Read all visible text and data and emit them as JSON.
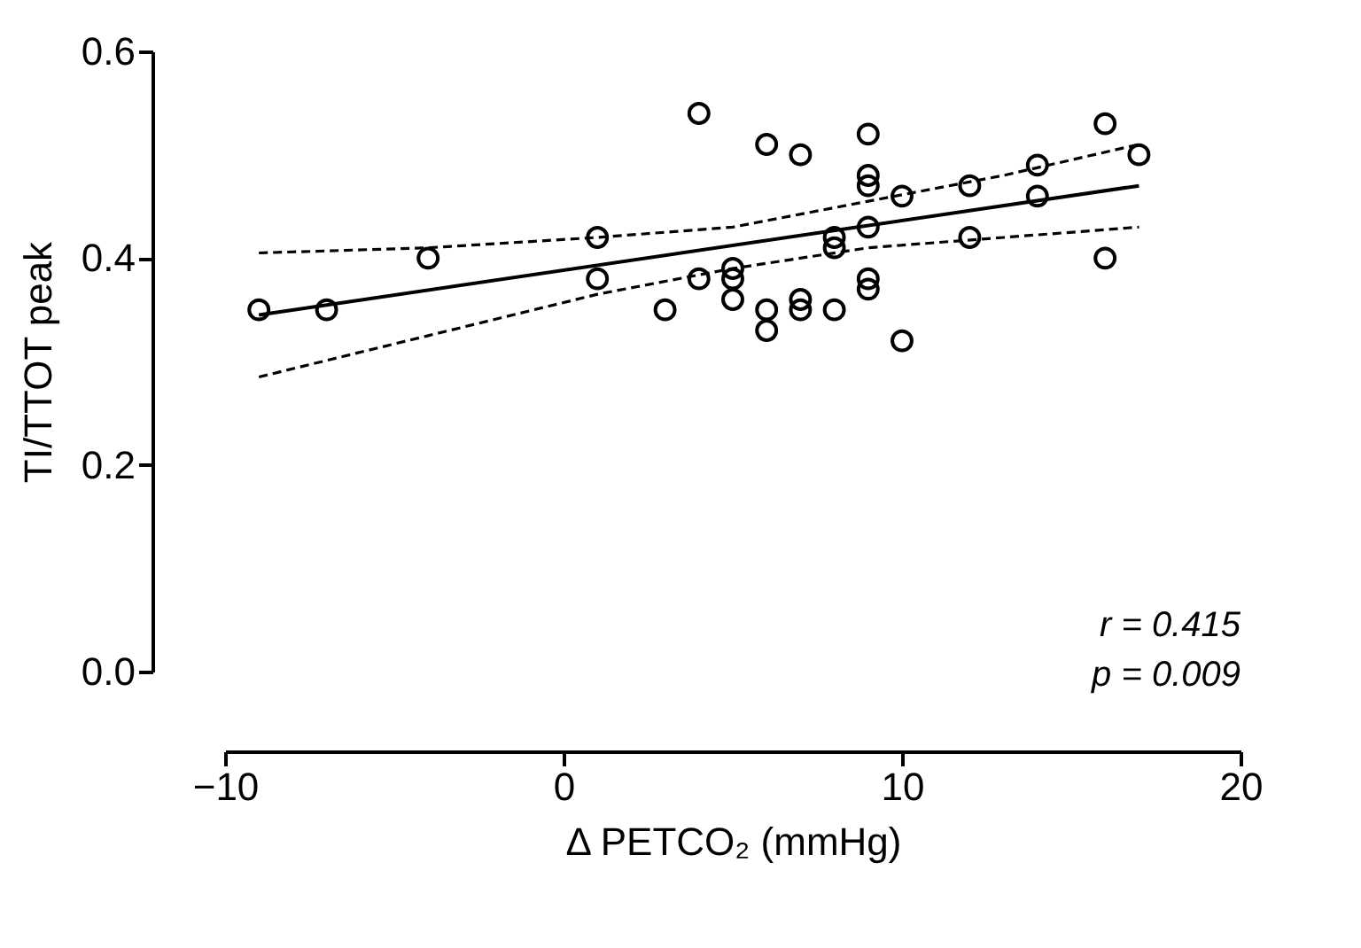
{
  "chart_data": {
    "type": "scatter",
    "xlabel": "Δ PETCO₂ (mmHg)",
    "ylabel": "TI/TTOT peak",
    "xlim": [
      -10,
      20
    ],
    "xticks": [
      -10,
      0,
      10,
      20
    ],
    "ylim": [
      0,
      0.6
    ],
    "yticks": [
      {
        "value": 0,
        "label": "0.0"
      },
      0.2,
      0.4,
      0.6
    ],
    "grid": false,
    "annotations": [
      "r = 0.415",
      "p = 0.009"
    ],
    "series": [
      {
        "color": "#000000",
        "marker": "circle",
        "x": [
          -9,
          -7,
          -4,
          1,
          1,
          3,
          4,
          4,
          5,
          5,
          5,
          6,
          6,
          6,
          7,
          7,
          7,
          8,
          8,
          8,
          9,
          9,
          9,
          9,
          9,
          9,
          10,
          10,
          12,
          12,
          14,
          14,
          16,
          16,
          17
        ],
        "values": [
          0.35,
          0.35,
          0.4,
          0.42,
          0.38,
          0.35,
          0.54,
          0.38,
          0.39,
          0.38,
          0.36,
          0.51,
          0.35,
          0.33,
          0.5,
          0.36,
          0.35,
          0.42,
          0.41,
          0.35,
          0.52,
          0.48,
          0.47,
          0.43,
          0.38,
          0.37,
          0.46,
          0.32,
          0.47,
          0.42,
          0.49,
          0.46,
          0.53,
          0.4,
          0.5
        ]
      },
      {
        "type": "line",
        "color": "#000000",
        "line_style": "solid",
        "x": [
          -9,
          17
        ],
        "values": [
          0.345,
          0.47
        ]
      },
      {
        "type": "line",
        "color": "#000000",
        "line_style": "dashed",
        "x": [
          -9,
          -4,
          1,
          5,
          9,
          13,
          17
        ],
        "values": [
          0.405,
          0.41,
          0.42,
          0.43,
          0.455,
          0.48,
          0.51
        ]
      },
      {
        "type": "line",
        "color": "#000000",
        "line_style": "dashed",
        "x": [
          -9,
          -4,
          1,
          5,
          9,
          13,
          17
        ],
        "values": [
          0.285,
          0.325,
          0.365,
          0.39,
          0.41,
          0.42,
          0.43
        ]
      }
    ]
  }
}
